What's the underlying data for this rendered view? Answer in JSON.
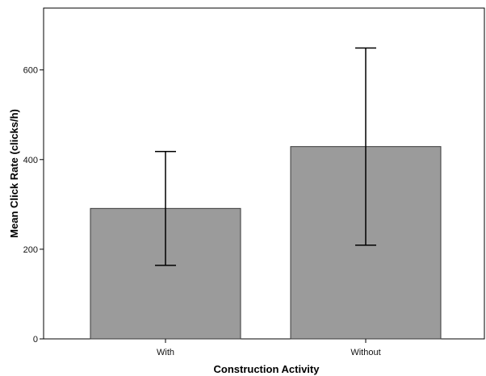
{
  "chart_data": {
    "type": "bar",
    "title": "",
    "xlabel": "Construction Activity",
    "ylabel": "Mean Click Rate (clicks/h)",
    "categories": [
      "With",
      "Without"
    ],
    "values": [
      291,
      429
    ],
    "error_low": [
      164,
      209
    ],
    "error_high": [
      418,
      649
    ],
    "ylim": [
      0,
      738
    ],
    "yticks": [
      0,
      200,
      400,
      600
    ],
    "ytick_labels": [
      "0",
      "200",
      "400",
      "600"
    ],
    "grid": false,
    "bar_color": "#9b9b9b",
    "bar_edge_color": "#3a3a3a",
    "error_bar_color": "#000000"
  }
}
